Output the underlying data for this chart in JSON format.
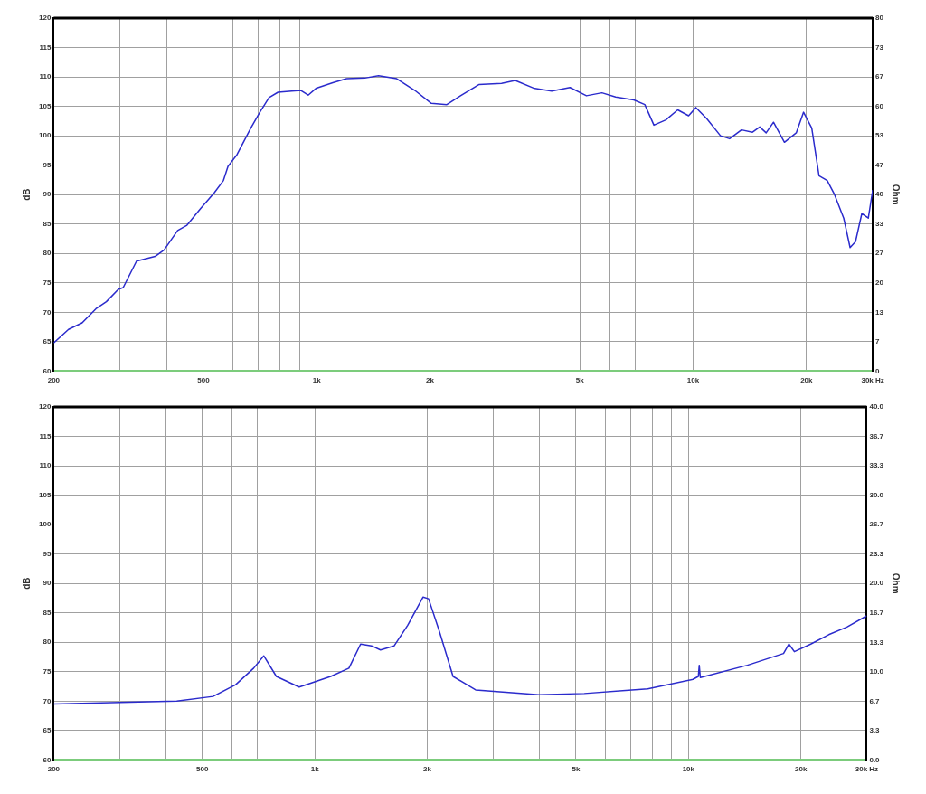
{
  "chart_data": [
    {
      "type": "line",
      "ylabel": "dB",
      "y2label": "Ohm",
      "log": "x",
      "grid": true,
      "legend": false,
      "marker": "none",
      "line_style": "solid",
      "xlim": [
        200,
        30000
      ],
      "xticks": [
        {
          "value": 200,
          "label": "200"
        },
        {
          "value": 300,
          "label": null
        },
        {
          "value": 400,
          "label": null
        },
        {
          "value": 500,
          "label": "500"
        },
        {
          "value": 600,
          "label": null
        },
        {
          "value": 700,
          "label": null
        },
        {
          "value": 800,
          "label": null
        },
        {
          "value": 900,
          "label": null
        },
        {
          "value": 1000,
          "label": "1k"
        },
        {
          "value": 2000,
          "label": "2k"
        },
        {
          "value": 3000,
          "label": null
        },
        {
          "value": 4000,
          "label": null
        },
        {
          "value": 5000,
          "label": "5k"
        },
        {
          "value": 6000,
          "label": null
        },
        {
          "value": 7000,
          "label": null
        },
        {
          "value": 8000,
          "label": null
        },
        {
          "value": 9000,
          "label": null
        },
        {
          "value": 10000,
          "label": "10k"
        },
        {
          "value": 20000,
          "label": "20k"
        },
        {
          "value": 30000,
          "label": "30k Hz"
        }
      ],
      "ylim": [
        60,
        120
      ],
      "yticks": [
        60,
        65,
        70,
        75,
        80,
        85,
        90,
        95,
        100,
        105,
        110,
        115,
        120
      ],
      "y2lim": [
        0,
        80
      ],
      "y2ticks": [
        0,
        {
          "value": 6.67,
          "label": "7"
        },
        {
          "value": 13.33,
          "label": "13"
        },
        20,
        {
          "value": 26.67,
          "label": "27"
        },
        {
          "value": 33.33,
          "label": "33"
        },
        40,
        {
          "value": 46.67,
          "label": "47"
        },
        {
          "value": 53.33,
          "label": "53"
        },
        60,
        {
          "value": 66.67,
          "label": "67"
        },
        {
          "value": 73.33,
          "label": "73"
        },
        80
      ],
      "x": [
        200,
        219,
        238,
        259,
        276,
        297,
        306,
        332,
        372,
        393,
        427,
        452,
        491,
        534,
        565,
        581,
        614,
        668,
        706,
        747,
        789,
        858,
        908,
        949,
        998,
        1103,
        1200,
        1341,
        1459,
        1631,
        1823,
        2016,
        2216,
        2410,
        2695,
        3097,
        3368,
        3766,
        4210,
        4707,
        5206,
        5723,
        6224,
        6958,
        7440,
        7866,
        8460,
        9098,
        9727,
        10170,
        10870,
        11820,
        12500,
        13440,
        14380,
        15030,
        15630,
        16350,
        17480,
        18790,
        19650,
        20660,
        21600,
        22710,
        23750,
        25120,
        26120,
        27000,
        28070,
        29200,
        30000
      ],
      "series": [
        {
          "color": "#2b2bcc",
          "values": [
            64.8,
            67.1,
            68.2,
            70.6,
            71.8,
            73.9,
            74.2,
            78.7,
            79.5,
            80.6,
            83.9,
            84.8,
            87.6,
            90.3,
            92.4,
            94.8,
            96.8,
            101.3,
            104.0,
            106.5,
            107.4,
            107.6,
            107.7,
            106.9,
            108.1,
            109.0,
            109.7,
            109.8,
            110.2,
            109.7,
            107.7,
            105.5,
            105.3,
            106.8,
            108.7,
            108.9,
            109.4,
            108.1,
            107.6,
            108.2,
            106.8,
            107.3,
            106.6,
            106.1,
            105.3,
            101.8,
            102.7,
            104.4,
            103.4,
            104.8,
            102.9,
            100.0,
            99.5,
            101.0,
            100.6,
            101.5,
            100.5,
            102.3,
            98.9,
            100.5,
            104.0,
            101.3,
            93.2,
            92.4,
            90.0,
            86.0,
            81.0,
            82.0,
            86.8,
            86.0,
            90.8
          ]
        }
      ]
    },
    {
      "type": "line",
      "ylabel": "dB",
      "y2label": "Ohm",
      "log": "x",
      "grid": true,
      "legend": false,
      "marker": "none",
      "line_style": "solid",
      "xlim": [
        200,
        30000
      ],
      "xticks": [
        {
          "value": 200,
          "label": "200"
        },
        {
          "value": 300,
          "label": null
        },
        {
          "value": 400,
          "label": null
        },
        {
          "value": 500,
          "label": "500"
        },
        {
          "value": 600,
          "label": null
        },
        {
          "value": 700,
          "label": null
        },
        {
          "value": 800,
          "label": null
        },
        {
          "value": 900,
          "label": null
        },
        {
          "value": 1000,
          "label": "1k"
        },
        {
          "value": 2000,
          "label": "2k"
        },
        {
          "value": 3000,
          "label": null
        },
        {
          "value": 4000,
          "label": null
        },
        {
          "value": 5000,
          "label": "5k"
        },
        {
          "value": 6000,
          "label": null
        },
        {
          "value": 7000,
          "label": null
        },
        {
          "value": 8000,
          "label": null
        },
        {
          "value": 9000,
          "label": null
        },
        {
          "value": 10000,
          "label": "10k"
        },
        {
          "value": 20000,
          "label": "20k"
        },
        {
          "value": 30000,
          "label": "30k Hz"
        }
      ],
      "ylim": [
        60,
        120
      ],
      "yticks": [
        60,
        65,
        70,
        75,
        80,
        85,
        90,
        95,
        100,
        105,
        110,
        115,
        120
      ],
      "y2lim": [
        0,
        40
      ],
      "y2ticks": [
        {
          "value": 0,
          "label": "0.0"
        },
        {
          "value": 3.33,
          "label": "3.3"
        },
        {
          "value": 6.67,
          "label": "6.7"
        },
        {
          "value": 10,
          "label": "10.0"
        },
        {
          "value": 13.33,
          "label": "13.3"
        },
        {
          "value": 16.67,
          "label": "16.7"
        },
        {
          "value": 20,
          "label": "20.0"
        },
        {
          "value": 23.33,
          "label": "23.3"
        },
        {
          "value": 26.67,
          "label": "26.7"
        },
        {
          "value": 30,
          "label": "30.0"
        },
        {
          "value": 33.33,
          "label": "33.3"
        },
        {
          "value": 36.67,
          "label": "36.7"
        },
        {
          "value": 40,
          "label": "40.0"
        }
      ],
      "x": [
        200,
        427,
        534,
        614,
        686,
        730,
        789,
        908,
        959,
        1103,
        1234,
        1326,
        1418,
        1499,
        1631,
        1773,
        1949,
        2016,
        2156,
        2344,
        2695,
        3982,
        5264,
        7780,
        10280,
        10630,
        10690,
        10760,
        14380,
        17970,
        18580,
        19210,
        21250,
        23750,
        26560,
        30000
      ],
      "series": [
        {
          "color": "#2b2bcc",
          "values": [
            69.5,
            70.0,
            70.8,
            72.8,
            75.6,
            77.7,
            74.2,
            72.4,
            72.9,
            74.2,
            75.6,
            79.7,
            79.4,
            78.7,
            79.4,
            82.9,
            87.7,
            87.4,
            81.8,
            74.2,
            71.9,
            71.1,
            71.3,
            72.1,
            73.7,
            74.2,
            76.1,
            74.0,
            76.1,
            78.1,
            79.7,
            78.4,
            79.7,
            81.3,
            82.6,
            84.5
          ]
        }
      ]
    }
  ]
}
